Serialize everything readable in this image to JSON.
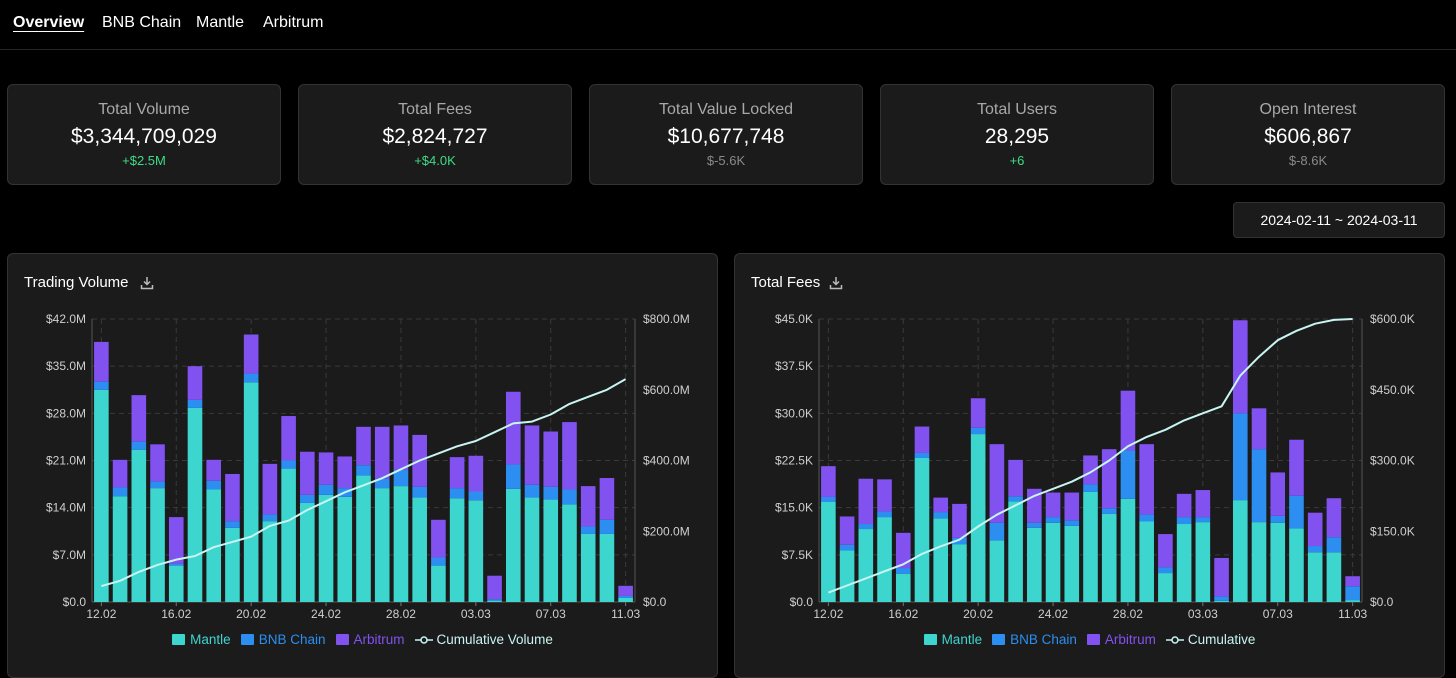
{
  "nav": {
    "tabs": [
      {
        "label": "Overview",
        "active": true
      },
      {
        "label": "BNB Chain",
        "active": false
      },
      {
        "label": "Mantle",
        "active": false
      },
      {
        "label": "Arbitrum",
        "active": false
      }
    ]
  },
  "stats": [
    {
      "label": "Total Volume",
      "value": "$3,344,709,029",
      "delta": "+$2.5M",
      "delta_color": "#3ddc84"
    },
    {
      "label": "Total Fees",
      "value": "$2,824,727",
      "delta": "+$4.0K",
      "delta_color": "#3ddc84"
    },
    {
      "label": "Total Value Locked",
      "value": "$10,677,748",
      "delta": "$-5.6K",
      "delta_color": "#8a8a8a"
    },
    {
      "label": "Total Users",
      "value": "28,295",
      "delta": "+6",
      "delta_color": "#3ddc84"
    },
    {
      "label": "Open Interest",
      "value": "$606,867",
      "delta": "$-8.6K",
      "delta_color": "#8a8a8a"
    }
  ],
  "date_range": "2024-02-11 ~ 2024-03-11",
  "colors": {
    "mantle": "#3dd6cf",
    "bnb": "#2b8ef0",
    "arbitrum": "#8152f0",
    "cumulative": "#c8f5f2",
    "grid": "#3a3a3a",
    "axis_text": "#cfcfcf"
  },
  "icons": {
    "download": "download-icon"
  },
  "chart_data": [
    {
      "type": "bar",
      "title": "Trading Volume",
      "stacked": true,
      "categories": [
        "12.02",
        "13.02",
        "14.02",
        "15.02",
        "16.02",
        "17.02",
        "18.02",
        "19.02",
        "20.02",
        "21.02",
        "22.02",
        "23.02",
        "24.02",
        "25.02",
        "26.02",
        "27.02",
        "28.02",
        "29.02",
        "01.03",
        "02.03",
        "03.03",
        "04.03",
        "05.03",
        "06.03",
        "07.03",
        "08.03",
        "09.03",
        "10.03",
        "11.03"
      ],
      "x_tick_labels": [
        "12.02",
        "16.02",
        "20.02",
        "24.02",
        "28.02",
        "03.03",
        "07.03",
        "11.03"
      ],
      "y_tick_labels": [
        "$0.0",
        "$7.0M",
        "$14.0M",
        "$21.0M",
        "$28.0M",
        "$35.0M",
        "$42.0M"
      ],
      "y2_tick_labels": [
        "$0.0",
        "$200.0M",
        "$400.0M",
        "$600.0M",
        "$800.0M"
      ],
      "ylim": [
        0,
        42
      ],
      "y2lim": [
        0,
        800
      ],
      "yunit": "M",
      "series": [
        {
          "name": "Mantle",
          "values": [
            31.5,
            15.7,
            22.6,
            16.9,
            5.4,
            28.8,
            16.7,
            11.0,
            32.6,
            12.0,
            19.8,
            14.7,
            15.9,
            15.6,
            18.8,
            16.9,
            17.2,
            15.5,
            5.4,
            15.4,
            15.1,
            0.2,
            16.8,
            15.5,
            15.2,
            14.5,
            10.1,
            10.1,
            0.6
          ]
        },
        {
          "name": "BNB Chain",
          "values": [
            1.2,
            1.3,
            1.2,
            1.0,
            0.3,
            1.2,
            1.3,
            1.0,
            1.3,
            1.0,
            1.2,
            1.2,
            1.5,
            1.3,
            1.5,
            1.4,
            2.4,
            1.6,
            1.2,
            1.5,
            1.3,
            0.2,
            3.6,
            1.9,
            1.9,
            2.2,
            1.1,
            2.1,
            0.3
          ]
        },
        {
          "name": "Arbitrum",
          "values": [
            5.9,
            4.1,
            6.9,
            5.5,
            6.9,
            5.0,
            3.1,
            7.0,
            5.8,
            7.5,
            6.6,
            6.4,
            4.8,
            4.7,
            5.7,
            7.7,
            6.6,
            7.7,
            5.6,
            4.6,
            5.3,
            3.5,
            10.8,
            8.8,
            8.2,
            10.0,
            6.0,
            6.2,
            1.5
          ]
        },
        {
          "name": "Cumulative Volume",
          "axis": "right",
          "values": [
            45,
            60,
            85,
            105,
            120,
            130,
            155,
            170,
            185,
            215,
            230,
            260,
            285,
            310,
            330,
            350,
            375,
            400,
            420,
            440,
            455,
            480,
            505,
            510,
            530,
            560,
            580,
            600,
            630
          ]
        }
      ],
      "legend": [
        "Mantle",
        "BNB Chain",
        "Arbitrum",
        "Cumulative Volume"
      ]
    },
    {
      "type": "bar",
      "title": "Total Fees",
      "stacked": true,
      "categories": [
        "12.02",
        "13.02",
        "14.02",
        "15.02",
        "16.02",
        "17.02",
        "18.02",
        "19.02",
        "20.02",
        "21.02",
        "22.02",
        "23.02",
        "24.02",
        "25.02",
        "26.02",
        "27.02",
        "28.02",
        "29.02",
        "01.03",
        "02.03",
        "03.03",
        "04.03",
        "05.03",
        "06.03",
        "07.03",
        "08.03",
        "09.03",
        "10.03",
        "11.03"
      ],
      "x_tick_labels": [
        "12.02",
        "16.02",
        "20.02",
        "24.02",
        "28.02",
        "03.03",
        "07.03",
        "11.03"
      ],
      "y_tick_labels": [
        "$0.0",
        "$7.5K",
        "$15.0K",
        "$22.5K",
        "$30.0K",
        "$37.5K",
        "$45.0K"
      ],
      "y2_tick_labels": [
        "$0.0",
        "$150.0K",
        "$300.0K",
        "$450.0K",
        "$600.0K"
      ],
      "ylim": [
        0,
        45
      ],
      "y2lim": [
        0,
        600
      ],
      "yunit": "K",
      "series": [
        {
          "name": "Mantle",
          "values": [
            15.9,
            8.2,
            11.6,
            13.5,
            4.5,
            22.9,
            13.3,
            9.2,
            26.7,
            9.8,
            16.0,
            11.8,
            12.6,
            12.1,
            17.5,
            14.0,
            16.4,
            12.8,
            4.6,
            12.4,
            12.7,
            0.2,
            16.2,
            12.7,
            12.6,
            11.7,
            7.9,
            7.9,
            0.3
          ]
        },
        {
          "name": "BNB Chain",
          "values": [
            0.8,
            0.9,
            0.8,
            0.9,
            0.9,
            0.8,
            1.0,
            1.0,
            1.0,
            2.8,
            0.8,
            0.8,
            0.9,
            0.9,
            1.2,
            0.9,
            7.7,
            1.1,
            0.9,
            1.1,
            0.8,
            0.7,
            13.8,
            11.6,
            1.1,
            5.2,
            1.0,
            2.4,
            2.2
          ]
        },
        {
          "name": "Arbitrum",
          "values": [
            4.9,
            4.5,
            7.2,
            5.1,
            5.6,
            4.2,
            2.3,
            5.4,
            4.7,
            12.5,
            5.8,
            5.4,
            3.9,
            4.4,
            4.6,
            9.4,
            9.5,
            11.2,
            5.3,
            3.7,
            4.3,
            6.1,
            14.8,
            6.5,
            6.9,
            8.9,
            5.3,
            6.2,
            1.6
          ]
        },
        {
          "name": "Cumulative",
          "axis": "right",
          "values": [
            20,
            35,
            50,
            65,
            80,
            102,
            118,
            132,
            160,
            185,
            205,
            225,
            240,
            255,
            275,
            300,
            330,
            350,
            365,
            385,
            400,
            415,
            480,
            520,
            555,
            575,
            590,
            598,
            600
          ]
        }
      ],
      "legend": [
        "Mantle",
        "BNB Chain",
        "Arbitrum",
        "Cumulative"
      ]
    }
  ]
}
